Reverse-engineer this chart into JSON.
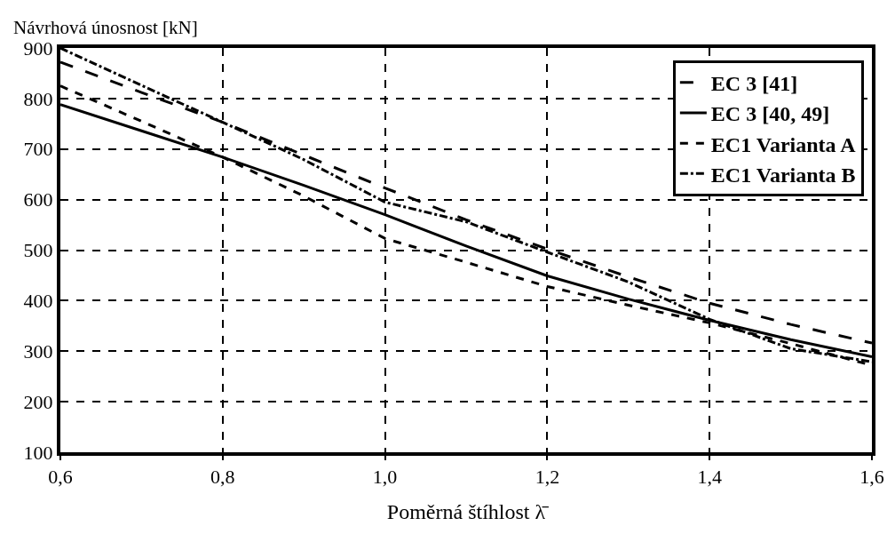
{
  "chart_data": {
    "type": "line",
    "xlabel": "Poměrná štíhlost λ̄",
    "ylabel": "Návrhová únosnost [kN]",
    "x": [
      0.6,
      0.7,
      0.8,
      0.9,
      1.0,
      1.1,
      1.2,
      1.3,
      1.4,
      1.5,
      1.6
    ],
    "series": [
      {
        "name": "EC 3 [41]",
        "color": "#000000",
        "line_style": "longdash",
        "values": [
          872,
          812,
          753,
          688,
          623,
          560,
          502,
          447,
          395,
          353,
          316
        ]
      },
      {
        "name": "EC 3 [40, 49]",
        "color": "#000000",
        "line_style": "solid",
        "values": [
          788,
          736,
          684,
          628,
          570,
          508,
          449,
          403,
          361,
          323,
          289
        ]
      },
      {
        "name": "EC1 Varianta A",
        "color": "#000000",
        "line_style": "dashed",
        "values": [
          825,
          755,
          684,
          607,
          523,
          476,
          428,
          391,
          356,
          315,
          272
        ]
      },
      {
        "name": "EC1 Varianta B",
        "color": "#000000",
        "line_style": "dashdot",
        "values": [
          900,
          826,
          753,
          679,
          595,
          556,
          496,
          437,
          363,
          305,
          279
        ]
      }
    ],
    "xlim": [
      0.6,
      1.6
    ],
    "xticks": [
      {
        "value": 0.6,
        "label": "0,6"
      },
      {
        "value": 0.8,
        "label": "0,8"
      },
      {
        "value": 1.0,
        "label": "1,0"
      },
      {
        "value": 1.2,
        "label": "1,2"
      },
      {
        "value": 1.4,
        "label": "1,4"
      },
      {
        "value": 1.6,
        "label": "1,6"
      }
    ],
    "ylim": [
      100,
      900
    ],
    "yticks": [
      100,
      200,
      300,
      400,
      500,
      600,
      700,
      800,
      900
    ],
    "grid": true,
    "legend": "top right",
    "marker": "none"
  }
}
